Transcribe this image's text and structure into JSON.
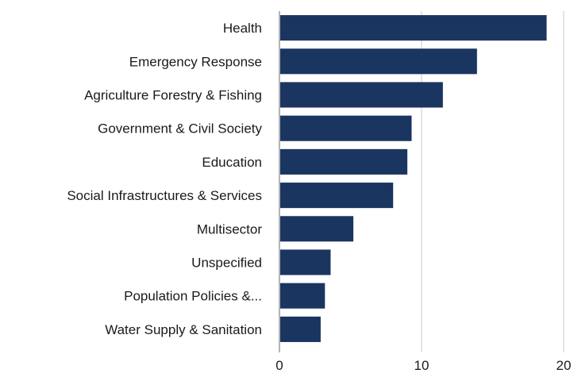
{
  "chart_data": {
    "type": "bar",
    "orientation": "horizontal",
    "categories": [
      "Health",
      "Emergency Response",
      "Agriculture Forestry & Fishing",
      "Government & Civil Society",
      "Education",
      "Social Infrastructures & Services",
      "Multisector",
      "Unspecified",
      "Population Policies &...",
      "Water Supply & Sanitation"
    ],
    "values": [
      18.8,
      13.9,
      11.5,
      9.3,
      9.0,
      8.0,
      5.2,
      3.6,
      3.2,
      2.9
    ],
    "xlim": [
      0,
      20
    ],
    "xticks": [
      "0",
      "10",
      "20"
    ],
    "grid": true,
    "bar_color": "#1b3561",
    "title": "",
    "xlabel": "",
    "ylabel": ""
  }
}
